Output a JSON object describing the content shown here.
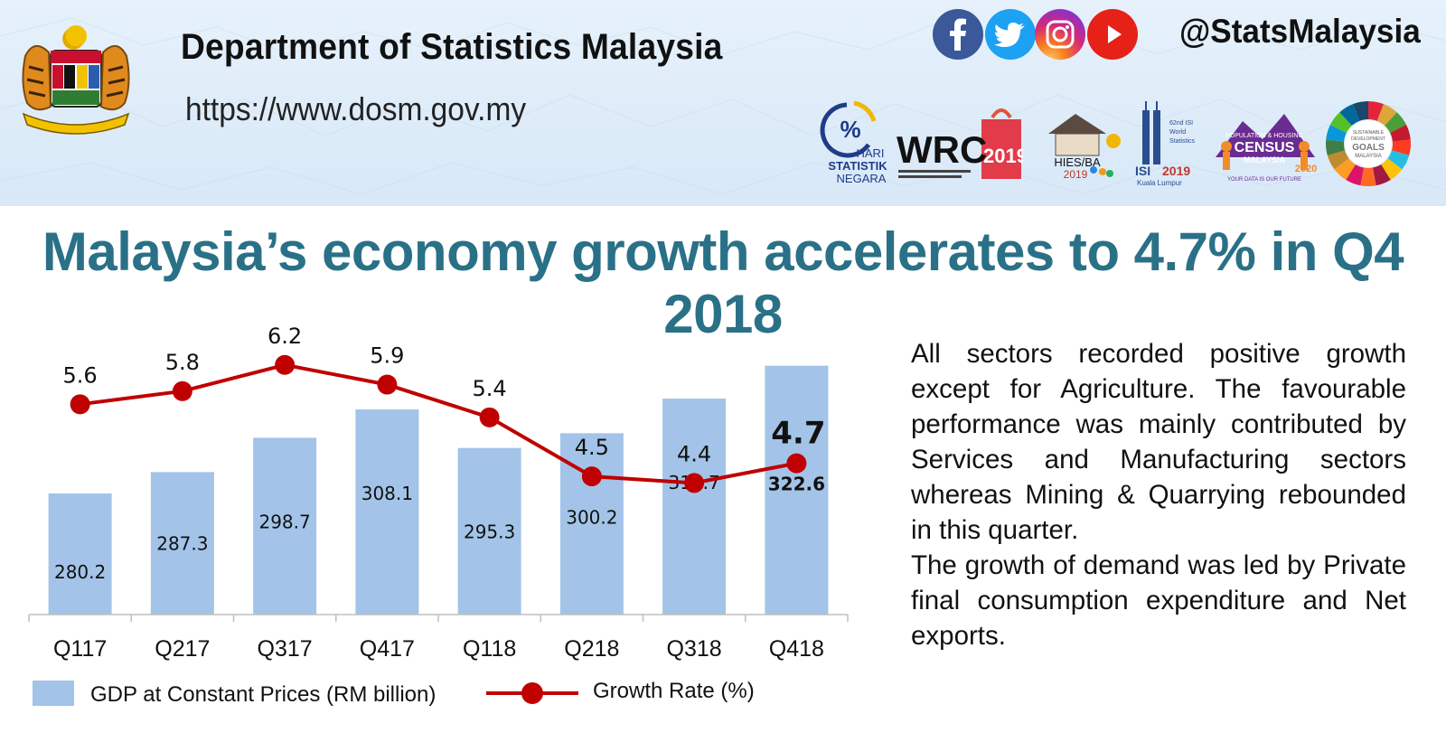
{
  "header": {
    "org_name": "Department of Statistics Malaysia",
    "url": "https://www.dosm.gov.my",
    "social_handle": "@StatsMalaysia",
    "social_icons": [
      "facebook-icon",
      "twitter-icon",
      "instagram-icon",
      "youtube-icon"
    ],
    "logos": {
      "hari_statistik": [
        "HARI",
        "STATISTIK",
        "NEGARA"
      ],
      "wrc": {
        "main": "WRC",
        "year": "2019"
      },
      "hies": {
        "main": "HIES/BA",
        "year": "2019"
      },
      "isi": {
        "main": "ISI",
        "year": "2019",
        "city": "Kuala Lumpur",
        "tag": "62nd ISI World Statistics Congress"
      },
      "census": {
        "main": "CENSUS",
        "sub": "MALAYSIA",
        "year": "2020",
        "top": "POPULATION & HOUSING",
        "tag": "YOUR DATA IS OUR FUTURE"
      },
      "sdg": {
        "line1": "SUSTAINABLE",
        "line2": "DEVELOPMENT",
        "line3": "GOALS",
        "line4": "MALAYSIA"
      }
    }
  },
  "title": "Malaysia’s economy growth accelerates to 4.7% in Q4 2018",
  "description": {
    "p1": "All sectors recorded positive growth except for Agriculture. The favourable performance was mainly contributed by Services and Manufacturing sectors whereas Mining & Quarrying rebounded in this quarter.",
    "p2": "The growth of demand was led by Private final consumption expenditure and Net exports."
  },
  "chart_data": {
    "type": "bar",
    "categories": [
      "Q117",
      "Q217",
      "Q317",
      "Q417",
      "Q118",
      "Q218",
      "Q318",
      "Q418"
    ],
    "series": [
      {
        "name": "GDP at Constant Prices (RM billion)",
        "type": "bar",
        "values": [
          280.2,
          287.3,
          298.7,
          308.1,
          295.3,
          300.2,
          311.7,
          322.6
        ],
        "color": "#a3c4e8"
      },
      {
        "name": "Growth Rate (%)",
        "type": "line",
        "values": [
          5.6,
          5.8,
          6.2,
          5.9,
          5.4,
          4.5,
          4.4,
          4.7
        ],
        "color": "#c00000"
      }
    ],
    "highlight_index": 7,
    "legend_position": "bottom",
    "grid": false
  },
  "colors": {
    "title": "#2a7187",
    "bar": "#a3c4e8",
    "line": "#c00000"
  }
}
